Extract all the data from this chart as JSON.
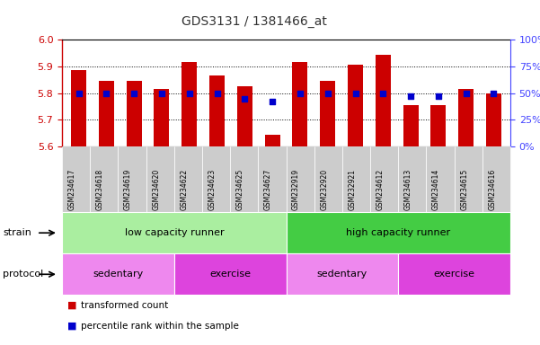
{
  "title": "GDS3131 / 1381466_at",
  "samples": [
    "GSM234617",
    "GSM234618",
    "GSM234619",
    "GSM234620",
    "GSM234622",
    "GSM234623",
    "GSM234625",
    "GSM234627",
    "GSM232919",
    "GSM232920",
    "GSM232921",
    "GSM234612",
    "GSM234613",
    "GSM234614",
    "GSM234615",
    "GSM234616"
  ],
  "transformed_count": [
    5.885,
    5.845,
    5.845,
    5.815,
    5.915,
    5.865,
    5.825,
    5.645,
    5.915,
    5.845,
    5.905,
    5.945,
    5.755,
    5.755,
    5.815,
    5.8
  ],
  "percentile_rank": [
    50,
    50,
    50,
    50,
    50,
    50,
    45,
    42,
    50,
    50,
    50,
    50,
    47,
    47,
    50,
    50
  ],
  "ylim_left": [
    5.6,
    6.0
  ],
  "ylim_right": [
    0,
    100
  ],
  "yticks_left": [
    5.6,
    5.7,
    5.8,
    5.9,
    6.0
  ],
  "yticks_right": [
    0,
    25,
    50,
    75,
    100
  ],
  "ytick_labels_right": [
    "0%",
    "25%",
    "50%",
    "75%",
    "100%"
  ],
  "bar_color": "#cc0000",
  "dot_color": "#0000cc",
  "bar_bottom": 5.6,
  "strain_groups": [
    {
      "label": "low capacity runner",
      "start": 0,
      "end": 8,
      "color": "#aaeea0"
    },
    {
      "label": "high capacity runner",
      "start": 8,
      "end": 16,
      "color": "#44cc44"
    }
  ],
  "protocol_groups": [
    {
      "label": "sedentary",
      "start": 0,
      "end": 4,
      "color": "#ee88ee"
    },
    {
      "label": "exercise",
      "start": 4,
      "end": 8,
      "color": "#dd44dd"
    },
    {
      "label": "sedentary",
      "start": 8,
      "end": 12,
      "color": "#ee88ee"
    },
    {
      "label": "exercise",
      "start": 12,
      "end": 16,
      "color": "#dd44dd"
    }
  ],
  "left_label_color": "#cc0000",
  "right_label_color": "#4444ff",
  "grid_color": "#000000",
  "background_color": "#ffffff",
  "tick_label_bg": "#cccccc"
}
